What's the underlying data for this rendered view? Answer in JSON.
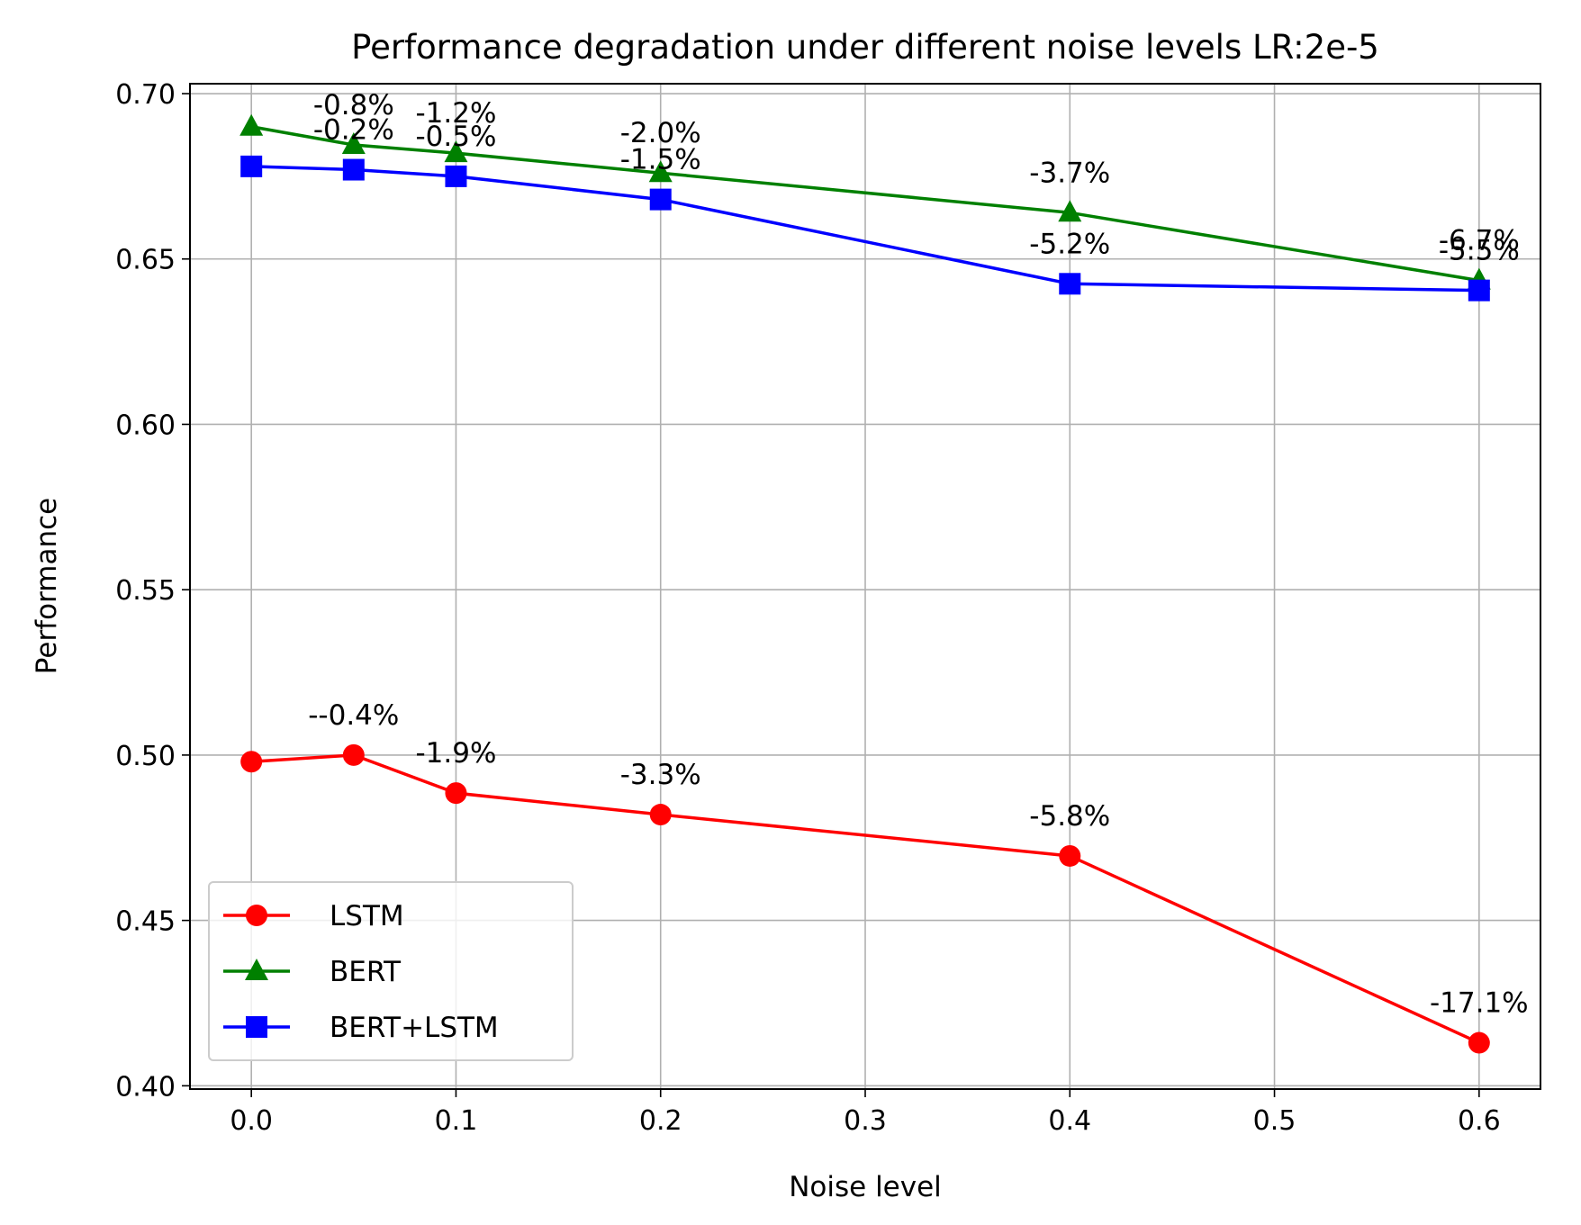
{
  "chart_data": {
    "type": "line",
    "title": "Performance degradation under different noise levels LR:2e-5",
    "xlabel": "Noise level",
    "ylabel": "Performance",
    "xlim": [
      -0.03,
      0.63
    ],
    "ylim": [
      0.399,
      0.703
    ],
    "x_ticks": [
      0.0,
      0.1,
      0.2,
      0.3,
      0.4,
      0.5,
      0.6
    ],
    "x_tick_labels": [
      "0.0",
      "0.1",
      "0.2",
      "0.3",
      "0.4",
      "0.5",
      "0.6"
    ],
    "y_ticks": [
      0.4,
      0.45,
      0.5,
      0.55,
      0.6,
      0.65,
      0.7
    ],
    "y_tick_labels": [
      "0.40",
      "0.45",
      "0.50",
      "0.55",
      "0.60",
      "0.65",
      "0.70"
    ],
    "grid": true,
    "legend_position": "lower-left",
    "x": [
      0.0,
      0.05,
      0.1,
      0.2,
      0.4,
      0.6
    ],
    "series": [
      {
        "name": "LSTM",
        "color": "#ff0000",
        "marker": "circle",
        "values": [
          0.498,
          0.5,
          0.4885,
          0.482,
          0.4695,
          0.413
        ],
        "labels": [
          "",
          "--0.4%",
          "-1.9%",
          "-3.3%",
          "-5.8%",
          "-17.1%"
        ]
      },
      {
        "name": "BERT",
        "color": "#008000",
        "marker": "triangle",
        "values": [
          0.69,
          0.6845,
          0.682,
          0.676,
          0.664,
          0.6435
        ],
        "labels": [
          "",
          "-0.8%",
          "-1.2%",
          "-2.0%",
          "-3.7%",
          "-6.7%"
        ]
      },
      {
        "name": "BERT+LSTM",
        "color": "#0000ff",
        "marker": "square",
        "values": [
          0.678,
          0.677,
          0.675,
          0.668,
          0.6425,
          0.6405
        ],
        "labels": [
          "",
          "-0.2%",
          "-0.5%",
          "-1.5%",
          "-5.2%",
          "-5.5%"
        ]
      }
    ]
  }
}
